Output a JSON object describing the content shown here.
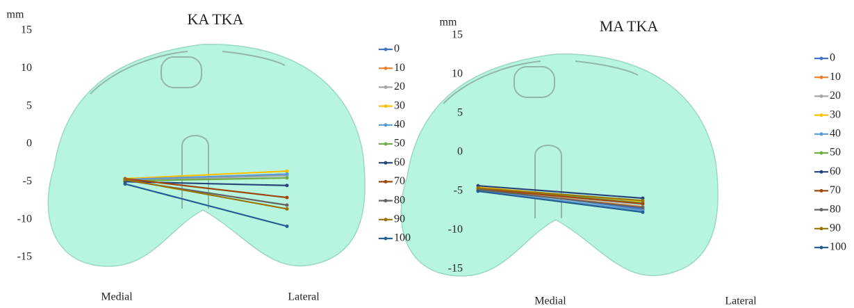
{
  "chart_data": [
    {
      "type": "line",
      "title": "KA TKA",
      "y_label": "mm",
      "categories": [
        "Medial",
        "Lateral"
      ],
      "ylim": [
        -15,
        15
      ],
      "yticks": [
        15,
        10,
        5,
        0,
        -5,
        -10,
        -15
      ],
      "series": [
        {
          "name": "0",
          "color": "#4472c4",
          "values": [
            -4.8,
            -4.0
          ]
        },
        {
          "name": "10",
          "color": "#ed7d31",
          "values": [
            -4.7,
            -4.1
          ]
        },
        {
          "name": "20",
          "color": "#a5a5a5",
          "values": [
            -4.8,
            -4.2
          ]
        },
        {
          "name": "30",
          "color": "#ffc000",
          "values": [
            -4.6,
            -3.6
          ]
        },
        {
          "name": "40",
          "color": "#5b9bd5",
          "values": [
            -4.7,
            -4.0
          ]
        },
        {
          "name": "50",
          "color": "#70ad47",
          "values": [
            -4.9,
            -4.5
          ]
        },
        {
          "name": "60",
          "color": "#264478",
          "values": [
            -5.0,
            -5.5
          ]
        },
        {
          "name": "70",
          "color": "#9e480e",
          "values": [
            -4.6,
            -7.1
          ]
        },
        {
          "name": "80",
          "color": "#636363",
          "values": [
            -4.8,
            -8.1
          ]
        },
        {
          "name": "90",
          "color": "#997300",
          "values": [
            -4.7,
            -8.6
          ]
        },
        {
          "name": "100",
          "color": "#255e91",
          "values": [
            -5.3,
            -10.9
          ]
        }
      ]
    },
    {
      "type": "line",
      "title": "MA TKA",
      "y_label": "mm",
      "categories": [
        "Medial",
        "Lateral"
      ],
      "ylim": [
        -15,
        15
      ],
      "yticks": [
        15,
        10,
        5,
        0,
        -5,
        -10,
        -15
      ],
      "series": [
        {
          "name": "0",
          "color": "#4472c4",
          "values": [
            -4.6,
            -7.3
          ]
        },
        {
          "name": "10",
          "color": "#ed7d31",
          "values": [
            -4.8,
            -7.0
          ]
        },
        {
          "name": "20",
          "color": "#a5a5a5",
          "values": [
            -4.7,
            -6.7
          ]
        },
        {
          "name": "30",
          "color": "#ffc000",
          "values": [
            -4.5,
            -6.3
          ]
        },
        {
          "name": "40",
          "color": "#5b9bd5",
          "values": [
            -4.9,
            -7.5
          ]
        },
        {
          "name": "50",
          "color": "#70ad47",
          "values": [
            -4.6,
            -6.5
          ]
        },
        {
          "name": "60",
          "color": "#264478",
          "values": [
            -4.3,
            -5.9
          ]
        },
        {
          "name": "70",
          "color": "#9e480e",
          "values": [
            -4.7,
            -6.6
          ]
        },
        {
          "name": "80",
          "color": "#636363",
          "values": [
            -4.8,
            -7.1
          ]
        },
        {
          "name": "90",
          "color": "#997300",
          "values": [
            -4.6,
            -6.2
          ]
        },
        {
          "name": "100",
          "color": "#255e91",
          "values": [
            -5.0,
            -7.7
          ]
        }
      ]
    }
  ]
}
